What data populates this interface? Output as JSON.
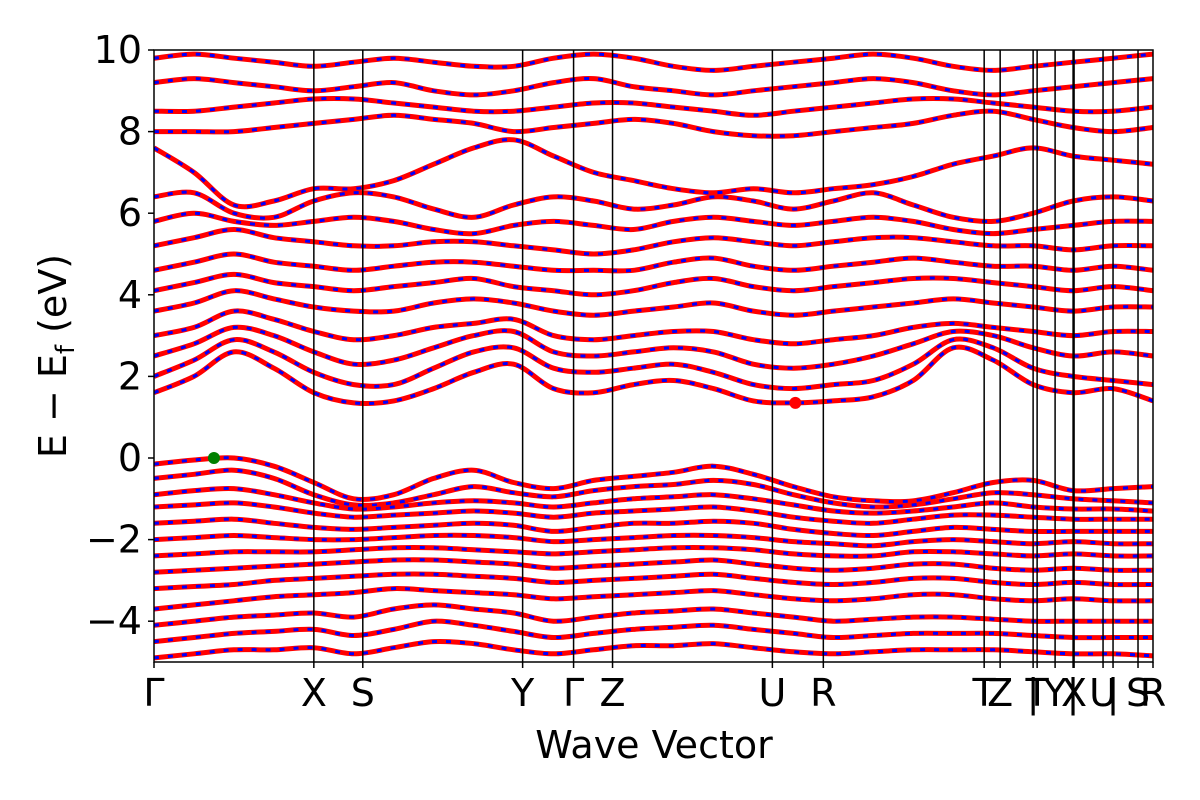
{
  "chart_data": {
    "type": "line",
    "title": "",
    "xlabel": "Wave Vector",
    "ylabel": {
      "main": "E − E",
      "sub": "f",
      "unit": " (eV)"
    },
    "ylim": [
      -5,
      10
    ],
    "yticks": [
      -4,
      -2,
      0,
      2,
      4,
      6,
      8,
      10
    ],
    "ytick_labels": [
      "−4",
      "−2",
      "0",
      "2",
      "4",
      "6",
      "8",
      "10"
    ],
    "xlim": [
      0,
      1
    ],
    "kpoints": [
      {
        "label": "Γ",
        "x": 0.0
      },
      {
        "label": "X",
        "x": 0.16
      },
      {
        "label": "S",
        "x": 0.209
      },
      {
        "label": "Y",
        "x": 0.369
      },
      {
        "label": "Γ",
        "x": 0.42
      },
      {
        "label": "Z",
        "x": 0.459
      },
      {
        "label": "U",
        "x": 0.619
      },
      {
        "label": "R",
        "x": 0.67
      },
      {
        "label": "T",
        "x": 0.831
      },
      {
        "label": "Z",
        "x": 0.847
      },
      {
        "label": "|",
        "x": 0.88
      },
      {
        "label": "T",
        "x": 0.884
      },
      {
        "label": "Y",
        "x": 0.902
      },
      {
        "label": "|",
        "x": 0.92
      },
      {
        "label": "X",
        "x": 0.921
      },
      {
        "label": "U",
        "x": 0.95
      },
      {
        "label": "|",
        "x": 0.96
      },
      {
        "label": "S",
        "x": 0.985
      },
      {
        "label": "R",
        "x": 1.0
      }
    ],
    "grid": false,
    "legend": "none",
    "series": [
      {
        "style": "solid",
        "color": "#ff0000"
      },
      {
        "style": "dashed",
        "color": "#0000ff"
      }
    ],
    "markers": [
      {
        "role": "vbm",
        "x": 0.06,
        "y": 0.0,
        "color": "#008000"
      },
      {
        "role": "cbm",
        "x": 0.642,
        "y": 1.35,
        "color": "#ff0000"
      }
    ],
    "bands": [
      {
        "y": [
          -0.15,
          -0.05,
          0.0,
          -0.2,
          -0.6,
          -1.0,
          -0.9,
          -0.5,
          -0.3,
          -0.6,
          -0.75,
          -0.55,
          -0.45,
          -0.35,
          -0.2,
          -0.4,
          -0.7,
          -0.95,
          -1.05,
          -1.05,
          -0.85,
          -0.6,
          -0.55,
          -0.8,
          -0.75,
          -0.7
        ]
      },
      {
        "y": [
          -0.5,
          -0.4,
          -0.3,
          -0.5,
          -0.9,
          -1.15,
          -1.1,
          -0.9,
          -0.7,
          -0.85,
          -0.95,
          -0.8,
          -0.7,
          -0.65,
          -0.55,
          -0.65,
          -0.9,
          -1.1,
          -1.2,
          -1.15,
          -1.0,
          -0.85,
          -0.9,
          -1.0,
          -1.05,
          -1.1
        ]
      },
      {
        "y": [
          -0.9,
          -0.8,
          -0.75,
          -0.9,
          -1.1,
          -1.25,
          -1.2,
          -1.1,
          -1.05,
          -1.1,
          -1.2,
          -1.1,
          -1.0,
          -0.95,
          -0.9,
          -1.0,
          -1.15,
          -1.3,
          -1.35,
          -1.3,
          -1.2,
          -1.1,
          -1.2,
          -1.25,
          -1.25,
          -1.3
        ]
      },
      {
        "y": [
          -1.2,
          -1.15,
          -1.1,
          -1.2,
          -1.35,
          -1.45,
          -1.4,
          -1.35,
          -1.3,
          -1.35,
          -1.45,
          -1.35,
          -1.3,
          -1.25,
          -1.2,
          -1.3,
          -1.45,
          -1.55,
          -1.6,
          -1.5,
          -1.4,
          -1.4,
          -1.45,
          -1.5,
          -1.5,
          -1.5
        ]
      },
      {
        "y": [
          -1.6,
          -1.55,
          -1.5,
          -1.6,
          -1.7,
          -1.75,
          -1.7,
          -1.65,
          -1.6,
          -1.65,
          -1.8,
          -1.7,
          -1.6,
          -1.6,
          -1.55,
          -1.6,
          -1.75,
          -1.85,
          -1.9,
          -1.8,
          -1.7,
          -1.75,
          -1.8,
          -1.8,
          -1.8,
          -1.8
        ]
      },
      {
        "y": [
          -2.0,
          -1.95,
          -1.9,
          -1.95,
          -2.0,
          -2.0,
          -1.95,
          -1.9,
          -1.9,
          -1.95,
          -2.05,
          -2.0,
          -1.95,
          -1.9,
          -1.9,
          -1.95,
          -2.05,
          -2.1,
          -2.15,
          -2.05,
          -2.0,
          -2.05,
          -2.1,
          -2.05,
          -2.1,
          -2.1
        ]
      },
      {
        "y": [
          -2.4,
          -2.35,
          -2.3,
          -2.3,
          -2.3,
          -2.25,
          -2.2,
          -2.2,
          -2.25,
          -2.3,
          -2.35,
          -2.3,
          -2.25,
          -2.2,
          -2.2,
          -2.25,
          -2.35,
          -2.4,
          -2.4,
          -2.3,
          -2.3,
          -2.35,
          -2.4,
          -2.35,
          -2.4,
          -2.4
        ]
      },
      {
        "y": [
          -2.8,
          -2.75,
          -2.7,
          -2.65,
          -2.6,
          -2.55,
          -2.5,
          -2.5,
          -2.55,
          -2.6,
          -2.7,
          -2.65,
          -2.6,
          -2.55,
          -2.5,
          -2.6,
          -2.7,
          -2.75,
          -2.7,
          -2.6,
          -2.6,
          -2.7,
          -2.75,
          -2.7,
          -2.75,
          -2.75
        ]
      },
      {
        "y": [
          -3.2,
          -3.15,
          -3.1,
          -3.0,
          -2.95,
          -2.9,
          -2.85,
          -2.85,
          -2.9,
          -2.95,
          -3.05,
          -3.0,
          -2.95,
          -2.9,
          -2.85,
          -2.95,
          -3.05,
          -3.1,
          -3.05,
          -2.95,
          -2.95,
          -3.05,
          -3.1,
          -3.05,
          -3.1,
          -3.1
        ]
      },
      {
        "y": [
          -3.7,
          -3.6,
          -3.5,
          -3.4,
          -3.35,
          -3.3,
          -3.2,
          -3.25,
          -3.3,
          -3.35,
          -3.45,
          -3.4,
          -3.35,
          -3.3,
          -3.25,
          -3.35,
          -3.45,
          -3.5,
          -3.45,
          -3.35,
          -3.35,
          -3.45,
          -3.5,
          -3.45,
          -3.5,
          -3.5
        ]
      },
      {
        "y": [
          -4.1,
          -4.0,
          -3.9,
          -3.85,
          -3.8,
          -3.9,
          -3.7,
          -3.6,
          -3.7,
          -3.8,
          -4.0,
          -3.9,
          -3.8,
          -3.75,
          -3.7,
          -3.8,
          -3.9,
          -4.0,
          -3.95,
          -3.9,
          -3.9,
          -3.95,
          -4.0,
          -4.0,
          -4.0,
          -4.0
        ]
      },
      {
        "y": [
          -4.5,
          -4.4,
          -4.3,
          -4.25,
          -4.2,
          -4.35,
          -4.2,
          -4.0,
          -4.1,
          -4.25,
          -4.4,
          -4.3,
          -4.2,
          -4.15,
          -4.1,
          -4.2,
          -4.3,
          -4.4,
          -4.35,
          -4.3,
          -4.3,
          -4.3,
          -4.35,
          -4.4,
          -4.4,
          -4.4
        ]
      },
      {
        "y": [
          -4.9,
          -4.8,
          -4.7,
          -4.7,
          -4.65,
          -4.8,
          -4.65,
          -4.5,
          -4.55,
          -4.7,
          -4.8,
          -4.7,
          -4.6,
          -4.6,
          -4.55,
          -4.65,
          -4.75,
          -4.8,
          -4.75,
          -4.7,
          -4.7,
          -4.7,
          -4.75,
          -4.8,
          -4.8,
          -4.85
        ]
      },
      {
        "y": [
          1.6,
          2.0,
          2.6,
          2.2,
          1.6,
          1.35,
          1.4,
          1.7,
          2.1,
          2.3,
          1.7,
          1.6,
          1.8,
          1.9,
          1.7,
          1.4,
          1.35,
          1.4,
          1.5,
          1.9,
          2.7,
          2.4,
          1.8,
          1.6,
          1.7,
          1.4
        ]
      },
      {
        "y": [
          2.0,
          2.4,
          2.9,
          2.6,
          2.1,
          1.8,
          1.8,
          2.2,
          2.6,
          2.7,
          2.2,
          2.1,
          2.2,
          2.3,
          2.1,
          1.8,
          1.7,
          1.8,
          1.9,
          2.3,
          2.9,
          2.7,
          2.2,
          2.0,
          1.9,
          1.8
        ]
      },
      {
        "y": [
          2.5,
          2.8,
          3.2,
          3.0,
          2.6,
          2.3,
          2.4,
          2.7,
          3.0,
          3.1,
          2.6,
          2.5,
          2.6,
          2.7,
          2.6,
          2.3,
          2.2,
          2.3,
          2.5,
          2.8,
          3.1,
          3.0,
          2.7,
          2.5,
          2.6,
          2.5
        ]
      },
      {
        "y": [
          3.0,
          3.2,
          3.6,
          3.4,
          3.1,
          2.9,
          3.0,
          3.2,
          3.3,
          3.4,
          3.0,
          2.9,
          3.0,
          3.1,
          3.1,
          2.9,
          2.8,
          2.9,
          3.0,
          3.2,
          3.3,
          3.2,
          3.1,
          3.0,
          3.1,
          3.1
        ]
      },
      {
        "y": [
          3.6,
          3.8,
          4.1,
          3.9,
          3.7,
          3.6,
          3.6,
          3.8,
          3.9,
          3.8,
          3.6,
          3.5,
          3.6,
          3.7,
          3.8,
          3.6,
          3.5,
          3.6,
          3.7,
          3.8,
          3.9,
          3.8,
          3.7,
          3.6,
          3.7,
          3.7
        ]
      },
      {
        "y": [
          4.1,
          4.3,
          4.5,
          4.3,
          4.2,
          4.1,
          4.2,
          4.3,
          4.4,
          4.2,
          4.1,
          4.0,
          4.1,
          4.3,
          4.4,
          4.2,
          4.1,
          4.2,
          4.3,
          4.4,
          4.4,
          4.3,
          4.2,
          4.1,
          4.2,
          4.1
        ]
      },
      {
        "y": [
          4.6,
          4.8,
          5.0,
          4.8,
          4.7,
          4.6,
          4.7,
          4.8,
          4.8,
          4.7,
          4.6,
          4.6,
          4.6,
          4.8,
          4.9,
          4.7,
          4.6,
          4.7,
          4.8,
          4.9,
          4.8,
          4.7,
          4.7,
          4.6,
          4.7,
          4.6
        ]
      },
      {
        "y": [
          5.2,
          5.4,
          5.6,
          5.4,
          5.3,
          5.2,
          5.2,
          5.3,
          5.3,
          5.2,
          5.1,
          5.0,
          5.1,
          5.3,
          5.4,
          5.3,
          5.2,
          5.3,
          5.4,
          5.4,
          5.3,
          5.2,
          5.2,
          5.1,
          5.2,
          5.2
        ]
      },
      {
        "y": [
          5.8,
          6.0,
          5.8,
          5.7,
          5.8,
          5.9,
          5.8,
          5.6,
          5.5,
          5.7,
          5.8,
          5.7,
          5.6,
          5.8,
          5.9,
          5.8,
          5.7,
          5.8,
          5.9,
          5.8,
          5.6,
          5.5,
          5.6,
          5.7,
          5.8,
          5.8
        ]
      },
      {
        "y": [
          6.4,
          6.5,
          6.0,
          5.9,
          6.3,
          6.5,
          6.4,
          6.1,
          5.9,
          6.2,
          6.4,
          6.3,
          6.1,
          6.2,
          6.4,
          6.3,
          6.1,
          6.3,
          6.5,
          6.2,
          5.9,
          5.8,
          6.0,
          6.3,
          6.4,
          6.3
        ]
      },
      {
        "y": [
          7.6,
          7.0,
          6.2,
          6.3,
          6.6,
          6.6,
          6.8,
          7.2,
          7.6,
          7.8,
          7.4,
          7.0,
          6.8,
          6.6,
          6.5,
          6.6,
          6.5,
          6.6,
          6.7,
          6.9,
          7.2,
          7.4,
          7.6,
          7.4,
          7.3,
          7.2
        ]
      },
      {
        "y": [
          8.0,
          8.0,
          8.0,
          8.1,
          8.2,
          8.3,
          8.4,
          8.3,
          8.2,
          8.0,
          8.1,
          8.2,
          8.3,
          8.2,
          8.0,
          7.9,
          7.9,
          8.0,
          8.1,
          8.2,
          8.4,
          8.5,
          8.3,
          8.1,
          8.0,
          8.1
        ]
      },
      {
        "y": [
          8.5,
          8.5,
          8.6,
          8.7,
          8.8,
          8.8,
          8.7,
          8.6,
          8.5,
          8.5,
          8.6,
          8.7,
          8.7,
          8.6,
          8.5,
          8.4,
          8.5,
          8.6,
          8.7,
          8.8,
          8.8,
          8.7,
          8.6,
          8.5,
          8.5,
          8.6
        ]
      },
      {
        "y": [
          9.2,
          9.3,
          9.2,
          9.1,
          9.0,
          9.1,
          9.2,
          9.0,
          8.9,
          9.0,
          9.2,
          9.3,
          9.1,
          9.0,
          8.9,
          9.0,
          9.1,
          9.2,
          9.3,
          9.2,
          9.0,
          8.9,
          9.0,
          9.1,
          9.2,
          9.3
        ]
      },
      {
        "y": [
          9.8,
          9.9,
          9.8,
          9.7,
          9.6,
          9.7,
          9.8,
          9.7,
          9.6,
          9.6,
          9.8,
          9.9,
          9.8,
          9.6,
          9.5,
          9.6,
          9.7,
          9.8,
          9.9,
          9.8,
          9.6,
          9.5,
          9.6,
          9.7,
          9.8,
          9.9
        ]
      }
    ]
  }
}
